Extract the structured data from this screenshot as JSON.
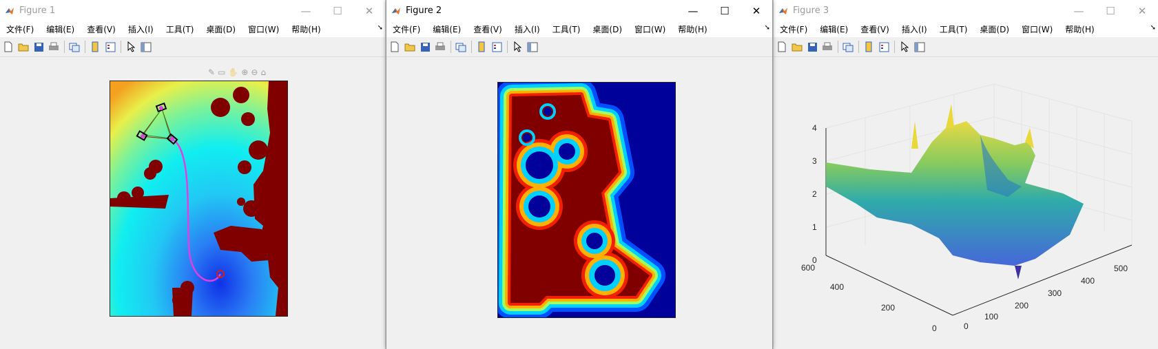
{
  "menus": [
    "文件(F)",
    "编辑(E)",
    "查看(V)",
    "插入(I)",
    "工具(T)",
    "桌面(D)",
    "窗口(W)",
    "帮助(H)"
  ],
  "colors": {
    "titlebar": "#ffffff",
    "window_bg": "#f0f0f0",
    "obstacle": "#800000",
    "path": "#e040e0"
  },
  "windows": [
    {
      "title": "Figure 1",
      "active": false
    },
    {
      "title": "Figure 2",
      "active": true
    },
    {
      "title": "Figure 3",
      "active": false
    }
  ],
  "window_controls": {
    "minimize": "—",
    "maximize": "☐",
    "close": "✕"
  },
  "figure3": {
    "z_ticks": [
      "4",
      "3",
      "2",
      "1",
      "0"
    ],
    "y_ticks": [
      "600",
      "400",
      "200",
      "0"
    ],
    "x_ticks": [
      "0",
      "100",
      "200",
      "300",
      "400",
      "500"
    ]
  }
}
